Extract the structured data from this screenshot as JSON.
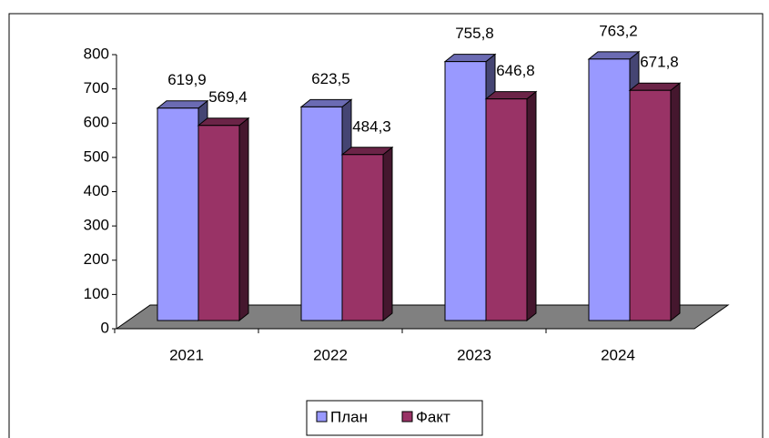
{
  "chart_data": {
    "type": "bar3d",
    "categories": [
      "2021",
      "2022",
      "2023",
      "2024"
    ],
    "series": [
      {
        "name": "План",
        "color": "#9999ff",
        "values": [
          619.9,
          623.5,
          755.8,
          763.2
        ],
        "value_labels": [
          "619,9",
          "623,5",
          "755,8",
          "763,2"
        ]
      },
      {
        "name": "Факт",
        "color": "#993366",
        "values": [
          569.4,
          484.3,
          646.8,
          671.8
        ],
        "value_labels": [
          "569,4",
          "484,3",
          "646,8",
          "671,8"
        ]
      }
    ],
    "ylim": [
      0,
      800
    ],
    "yticks": [
      0,
      100,
      200,
      300,
      400,
      500,
      600,
      700,
      800
    ],
    "legend": "bottom"
  }
}
